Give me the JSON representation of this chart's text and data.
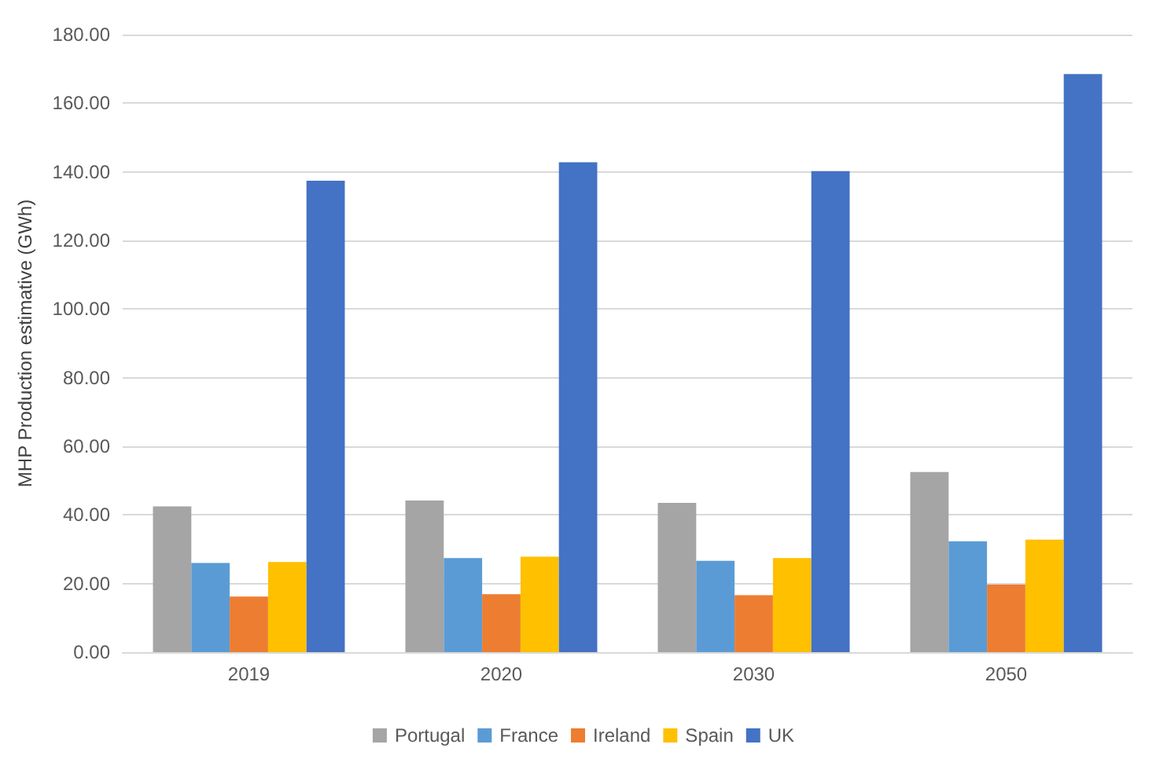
{
  "chart_data": {
    "type": "bar",
    "ylabel": "MHP Production estimative (GWh)",
    "categories": [
      "2019",
      "2020",
      "2030",
      "2050"
    ],
    "series": [
      {
        "name": "Portugal",
        "color": "#a5a5a5",
        "values": [
          42.5,
          44.2,
          43.5,
          52.5
        ]
      },
      {
        "name": "France",
        "color": "#5b9bd5",
        "values": [
          26.0,
          27.4,
          26.6,
          32.3
        ]
      },
      {
        "name": "Ireland",
        "color": "#ed7d31",
        "values": [
          16.2,
          16.9,
          16.6,
          19.7
        ]
      },
      {
        "name": "Spain",
        "color": "#ffc000",
        "values": [
          26.3,
          27.8,
          27.4,
          32.8
        ]
      },
      {
        "name": "UK",
        "color": "#4472c4",
        "values": [
          137.4,
          142.8,
          140.2,
          168.5
        ]
      }
    ],
    "ylim": [
      0,
      180
    ],
    "yticks": [
      {
        "value": 0,
        "label": "0.00"
      },
      {
        "value": 20,
        "label": "20.00"
      },
      {
        "value": 40,
        "label": "40.00"
      },
      {
        "value": 60,
        "label": "60.00"
      },
      {
        "value": 80,
        "label": "80.00"
      },
      {
        "value": 100,
        "label": "100.00"
      },
      {
        "value": 120,
        "label": "120.00"
      },
      {
        "value": 140,
        "label": "140.00"
      },
      {
        "value": 160,
        "label": "160.00"
      },
      {
        "value": 180,
        "label": "180.00"
      }
    ],
    "grid": "y",
    "legend": "bottom"
  }
}
